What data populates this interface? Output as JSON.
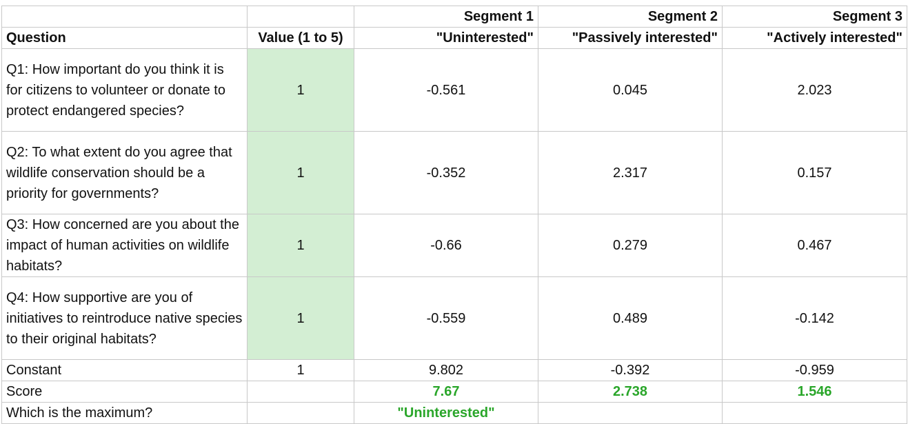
{
  "table": {
    "segments": [
      "Segment 1",
      "Segment 2",
      "Segment 3"
    ],
    "header": {
      "question": "Question",
      "value": "Value (1 to 5)",
      "names": [
        "\"Uninterested\"",
        "\"Passively interested\"",
        "\"Actively interested\""
      ]
    },
    "rows": [
      {
        "question": "Q1: How important do you think it is for citizens to volunteer or donate to protect endangered species?",
        "value": 1,
        "scores": [
          -0.561,
          0.045,
          2.023
        ]
      },
      {
        "question": "Q2: To what extent do you agree that wildlife conservation should be a priority for governments?",
        "value": 1,
        "scores": [
          -0.352,
          2.317,
          0.157
        ]
      },
      {
        "question": "Q3: How concerned are you about the impact of human activities on wildlife habitats?",
        "value": 1,
        "scores": [
          -0.66,
          0.279,
          0.467
        ]
      },
      {
        "question": "Q4: How supportive are you of initiatives to reintroduce native species to their original habitats?",
        "value": 1,
        "scores": [
          -0.559,
          0.489,
          -0.142
        ]
      },
      {
        "question": "Constant",
        "value": 1,
        "scores": [
          9.802,
          -0.392,
          -0.959
        ]
      }
    ],
    "score": {
      "label": "Score",
      "values": [
        7.67,
        2.738,
        1.546
      ]
    },
    "maximum": {
      "label": "Which is the maximum?",
      "answer": "\"Uninterested\""
    }
  }
}
